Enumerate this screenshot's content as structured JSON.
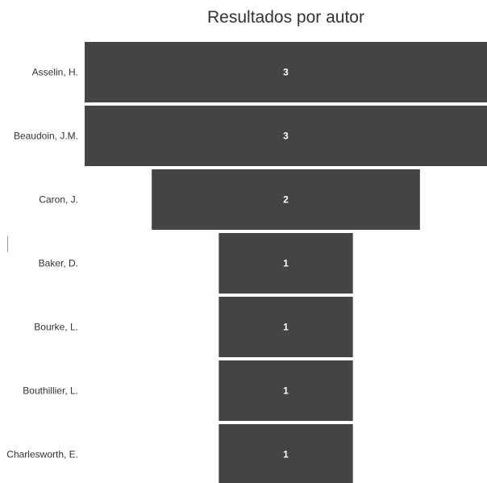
{
  "chart_data": {
    "type": "bar",
    "orientation": "horizontal-funnel",
    "title": "Resultados por autor",
    "categories": [
      "Asselin, H.",
      "Beaudoin, J.M.",
      "Caron, J.",
      "Baker, D.",
      "Bourke, L.",
      "Bouthillier, L.",
      "Charlesworth, E."
    ],
    "values": [
      3,
      3,
      2,
      1,
      1,
      1,
      1
    ],
    "xlim": [
      0,
      3
    ],
    "bar_color": "#444444",
    "label_color": "#ffffff",
    "grid": false,
    "legend": "none"
  }
}
